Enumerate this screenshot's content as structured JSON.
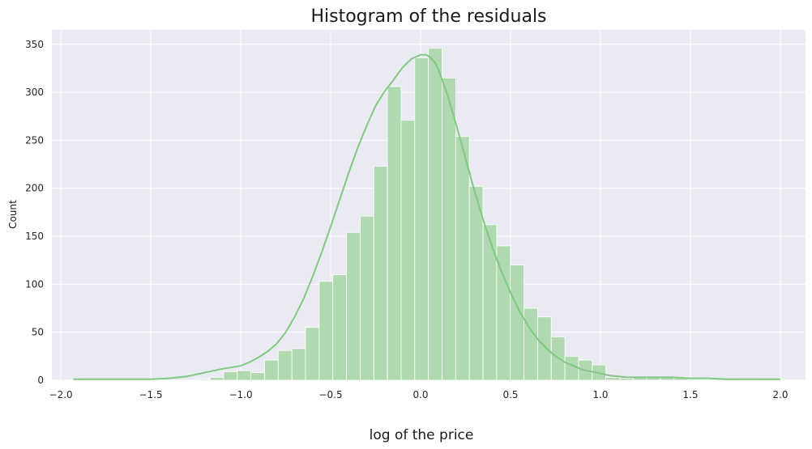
{
  "chart_data": {
    "type": "bar",
    "title": "Histogram of the residuals",
    "xlabel": "log of the price",
    "ylabel": "Count",
    "xlim": [
      -2.05,
      2.14
    ],
    "ylim": [
      0,
      365
    ],
    "xticks": [
      -2.0,
      -1.5,
      -1.0,
      -0.5,
      0.0,
      0.5,
      1.0,
      1.5,
      2.0
    ],
    "xtick_labels": [
      "−2.0",
      "−1.5",
      "−1.0",
      "−0.5",
      "0.0",
      "0.5",
      "1.0",
      "1.5",
      "2.0"
    ],
    "yticks": [
      0,
      50,
      100,
      150,
      200,
      250,
      300,
      350
    ],
    "ytick_labels": [
      "0",
      "50",
      "100",
      "150",
      "200",
      "250",
      "300",
      "350"
    ],
    "grid": true,
    "bin_start": -1.93,
    "bin_width": 0.0759,
    "counts": [
      1,
      0,
      0,
      0,
      0,
      0,
      0,
      0,
      0,
      1,
      3,
      9,
      10,
      8,
      21,
      31,
      33,
      55,
      103,
      110,
      154,
      171,
      223,
      306,
      271,
      336,
      346,
      315,
      254,
      202,
      162,
      140,
      120,
      75,
      66,
      45,
      25,
      21,
      16,
      3,
      2,
      3,
      3,
      3,
      3,
      1,
      1,
      1,
      1,
      0,
      1,
      1
    ],
    "kde": {
      "x": [
        -1.93,
        -1.7,
        -1.5,
        -1.4,
        -1.3,
        -1.2,
        -1.1,
        -1.0,
        -0.95,
        -0.9,
        -0.85,
        -0.8,
        -0.75,
        -0.7,
        -0.65,
        -0.6,
        -0.55,
        -0.5,
        -0.45,
        -0.4,
        -0.35,
        -0.3,
        -0.25,
        -0.2,
        -0.15,
        -0.1,
        -0.05,
        0.0,
        0.03,
        0.05,
        0.08,
        0.1,
        0.15,
        0.2,
        0.25,
        0.3,
        0.35,
        0.4,
        0.45,
        0.5,
        0.55,
        0.6,
        0.65,
        0.7,
        0.75,
        0.8,
        0.85,
        0.9,
        0.95,
        1.0,
        1.05,
        1.1,
        1.15,
        1.2,
        1.3,
        1.4,
        1.5,
        1.6,
        1.7,
        1.8,
        1.9,
        2.0
      ],
      "y": [
        1,
        1,
        1,
        2,
        4,
        8,
        12,
        15,
        19,
        24,
        30,
        38,
        50,
        66,
        85,
        108,
        133,
        160,
        188,
        216,
        242,
        265,
        286,
        301,
        313,
        326,
        335,
        339,
        339,
        337,
        331,
        323,
        297,
        265,
        231,
        197,
        166,
        138,
        113,
        91,
        72,
        56,
        43,
        33,
        25,
        19,
        15,
        11,
        9,
        7,
        5,
        4,
        3,
        3,
        3,
        3,
        2,
        2,
        1,
        1,
        1,
        1
      ]
    },
    "colors": {
      "bar_fill": "#b1d9b1",
      "bar_edge": "#ffffff",
      "kde_line": "#82c882",
      "plot_background": "#eaeaf2",
      "grid": "#ffffff"
    }
  }
}
